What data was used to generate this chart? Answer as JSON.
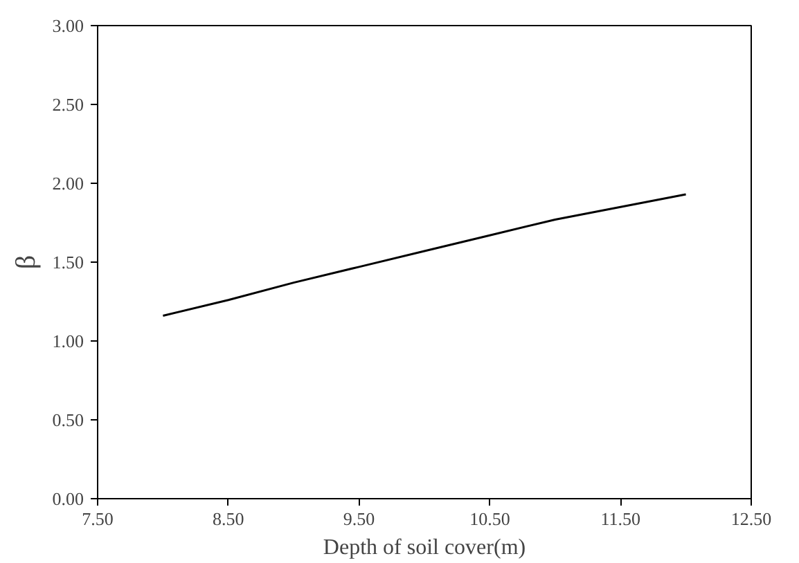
{
  "chart_data": {
    "type": "line",
    "xlabel": "Depth of soil cover(m)",
    "ylabel": "β",
    "x": [
      8,
      8.5,
      9,
      9.5,
      10,
      10.5,
      11,
      11.5,
      12
    ],
    "series": [
      {
        "color": "#000000",
        "values": [
          1.16,
          1.26,
          1.37,
          1.47,
          1.57,
          1.67,
          1.77,
          1.85,
          1.93
        ]
      }
    ],
    "xlim": [
      7.5,
      12.5
    ],
    "ylim": [
      0,
      3
    ],
    "xticks": [
      {
        "value": 7.5,
        "label": "7.50"
      },
      {
        "value": 8.5,
        "label": "8.50"
      },
      {
        "value": 9.5,
        "label": "9.50"
      },
      {
        "value": 10.5,
        "label": "10.50"
      },
      {
        "value": 11.5,
        "label": "11.50"
      },
      {
        "value": 12.5,
        "label": "12.50"
      }
    ],
    "yticks": [
      {
        "value": 0,
        "label": "0.00"
      },
      {
        "value": 0.5,
        "label": "0.50"
      },
      {
        "value": 1,
        "label": "1.00"
      },
      {
        "value": 1.5,
        "label": "1.50"
      },
      {
        "value": 2,
        "label": "2.00"
      },
      {
        "value": 2.5,
        "label": "2.50"
      },
      {
        "value": 3,
        "label": "3.00"
      }
    ],
    "grid": false,
    "marker": "none",
    "line_style": "solid"
  }
}
